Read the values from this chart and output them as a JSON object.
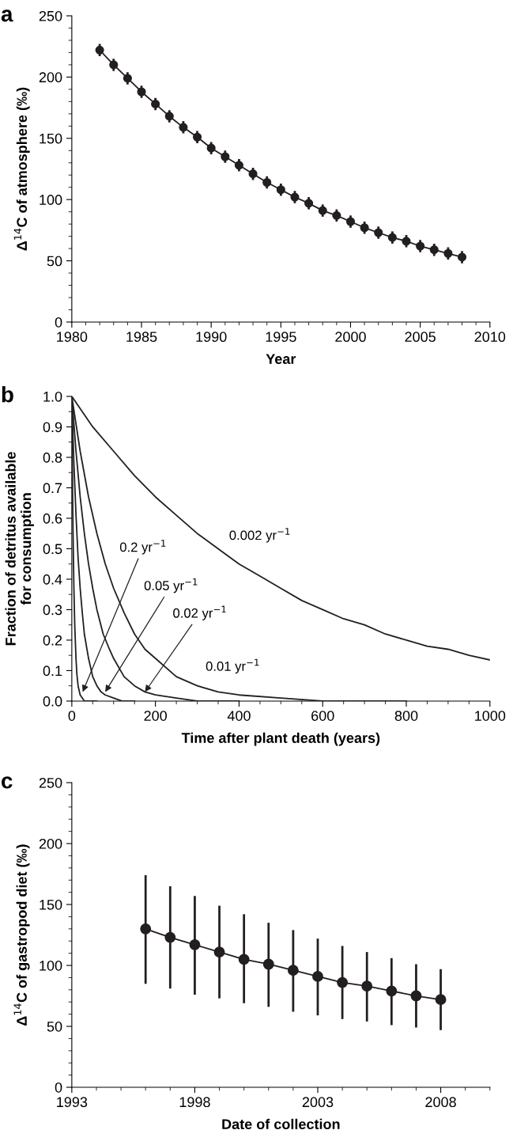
{
  "chart_data": [
    {
      "type": "line",
      "title": "a",
      "xlabel": "Year",
      "ylabel": "Δ$^{14}$C of atmosphere (‰)",
      "marker": "circle",
      "line_style": "solid",
      "xlim": [
        1980,
        2010
      ],
      "xticks": [
        1980,
        1985,
        1990,
        1995,
        2000,
        2005,
        2010
      ],
      "ylim": [
        0,
        250
      ],
      "yticks": [
        0,
        50,
        100,
        150,
        200,
        250
      ],
      "x": [
        1982,
        1983,
        1984,
        1985,
        1986,
        1987,
        1988,
        1989,
        1990,
        1991,
        1992,
        1993,
        1994,
        1995,
        1996,
        1997,
        1998,
        1999,
        2000,
        2001,
        2002,
        2003,
        2004,
        2005,
        2006,
        2007,
        2008
      ],
      "series": [
        {
          "color": "#231f20",
          "values": [
            222,
            210,
            199,
            188,
            178,
            168,
            159,
            151,
            142,
            135,
            128,
            121,
            114,
            108,
            102,
            97,
            91,
            87,
            82,
            77,
            73,
            69,
            66,
            62,
            59,
            56,
            53
          ],
          "errors": [
            5,
            5,
            5,
            5,
            5,
            5,
            5,
            5,
            5,
            5,
            5,
            5,
            5,
            5,
            5,
            5,
            5,
            5,
            5,
            5,
            5,
            5,
            5,
            5,
            5,
            5,
            5
          ]
        }
      ]
    },
    {
      "type": "line",
      "title": "b",
      "xlabel": "Time after plant death (years)",
      "ylabel": "Fraction of detritus available\nfor consumption",
      "marker": "none",
      "line_style": "solid",
      "xlim": [
        0,
        1000
      ],
      "xticks": [
        0,
        200,
        400,
        600,
        800,
        1000
      ],
      "ylim": [
        0,
        1.0
      ],
      "yticks": [
        {
          "value": 0,
          "label": "0.0"
        },
        {
          "value": 0.1,
          "label": "0.1"
        },
        {
          "value": 0.2,
          "label": "0.2"
        },
        {
          "value": 0.3,
          "label": "0.3"
        },
        {
          "value": 0.4,
          "label": "0.4"
        },
        {
          "value": 0.5,
          "label": "0.5"
        },
        {
          "value": 0.6,
          "label": "0.6"
        },
        {
          "value": 0.7,
          "label": "0.7"
        },
        {
          "value": 0.8,
          "label": "0.8"
        },
        {
          "value": 0.9,
          "label": "0.9"
        },
        {
          "value": 1.0,
          "label": "1.0"
        }
      ],
      "series": [
        {
          "color": "#231f20",
          "x": [
            0,
            1,
            2,
            3,
            5,
            7,
            10,
            12,
            15,
            20,
            25,
            30,
            40,
            60
          ],
          "values": [
            1.0,
            0.82,
            0.67,
            0.55,
            0.37,
            0.25,
            0.14,
            0.09,
            0.05,
            0.02,
            0.01,
            0.0,
            0.0,
            0.0
          ]
        },
        {
          "color": "#231f20",
          "x": [
            0,
            3,
            5,
            10,
            15,
            20,
            25,
            30,
            40,
            50,
            60,
            70,
            80,
            100,
            120,
            150
          ],
          "values": [
            1.0,
            0.86,
            0.78,
            0.61,
            0.47,
            0.37,
            0.29,
            0.22,
            0.14,
            0.08,
            0.05,
            0.03,
            0.02,
            0.01,
            0.0,
            0.0
          ]
        },
        {
          "color": "#231f20",
          "x": [
            0,
            10,
            20,
            30,
            40,
            50,
            60,
            75,
            90,
            100,
            125,
            150,
            175,
            200,
            250,
            300,
            400
          ],
          "values": [
            1.0,
            0.82,
            0.67,
            0.55,
            0.45,
            0.37,
            0.3,
            0.22,
            0.17,
            0.14,
            0.08,
            0.05,
            0.03,
            0.02,
            0.01,
            0.0,
            0.0
          ]
        },
        {
          "color": "#231f20",
          "x": [
            0,
            20,
            40,
            60,
            80,
            100,
            125,
            150,
            175,
            200,
            250,
            300,
            350,
            400,
            500,
            600,
            800
          ],
          "values": [
            1.0,
            0.82,
            0.67,
            0.55,
            0.45,
            0.37,
            0.29,
            0.22,
            0.17,
            0.14,
            0.08,
            0.05,
            0.03,
            0.02,
            0.01,
            0.0,
            0.0
          ]
        },
        {
          "color": "#231f20",
          "x": [
            0,
            50,
            100,
            150,
            200,
            250,
            300,
            350,
            400,
            450,
            500,
            550,
            600,
            650,
            700,
            750,
            800,
            850,
            900,
            950,
            1000
          ],
          "values": [
            1.0,
            0.9,
            0.82,
            0.74,
            0.67,
            0.61,
            0.55,
            0.5,
            0.45,
            0.41,
            0.37,
            0.33,
            0.3,
            0.27,
            0.25,
            0.22,
            0.2,
            0.18,
            0.17,
            0.15,
            0.135
          ]
        }
      ],
      "annotations": [
        "0.002 yr$^{−1}$",
        {
          "text": "0.2 yr$^{−1}$",
          "x": 26,
          "y": 0.03
        },
        {
          "text": "0.05 yr$^{−1}$",
          "x": 80,
          "y": 0.03
        },
        {
          "text": "0.02 yr$^{−1}$",
          "x": 175,
          "y": 0.03
        },
        "0.01 yr$^{−1}$"
      ]
    },
    {
      "type": "line",
      "title": "c",
      "xlabel": "Date of collection",
      "ylabel": "Δ$^{14}$C of gastropod diet (‰)",
      "marker": "circle",
      "line_style": "solid",
      "xlim": [
        1993,
        2010
      ],
      "xticks": [
        1993,
        1998,
        2003,
        2008
      ],
      "ylim": [
        0,
        250
      ],
      "yticks": [
        0,
        50,
        100,
        150,
        200,
        250
      ],
      "x": [
        1996,
        1997,
        1998,
        1999,
        2000,
        2001,
        2002,
        2003,
        2004,
        2005,
        2006,
        2007,
        2008
      ],
      "series": [
        {
          "color": "#231f20",
          "values": [
            130,
            123,
            117,
            111,
            105,
            101,
            96,
            91,
            86,
            83,
            79,
            75,
            72
          ],
          "errors": [
            [
              85,
              174
            ],
            [
              81,
              165
            ],
            [
              76,
              157
            ],
            [
              73,
              149
            ],
            [
              69,
              142
            ],
            [
              66,
              135
            ],
            [
              62,
              129
            ],
            [
              59,
              122
            ],
            [
              56,
              116
            ],
            [
              54,
              111
            ],
            [
              51,
              106
            ],
            [
              49,
              101
            ],
            [
              47,
              97
            ]
          ]
        }
      ]
    }
  ]
}
